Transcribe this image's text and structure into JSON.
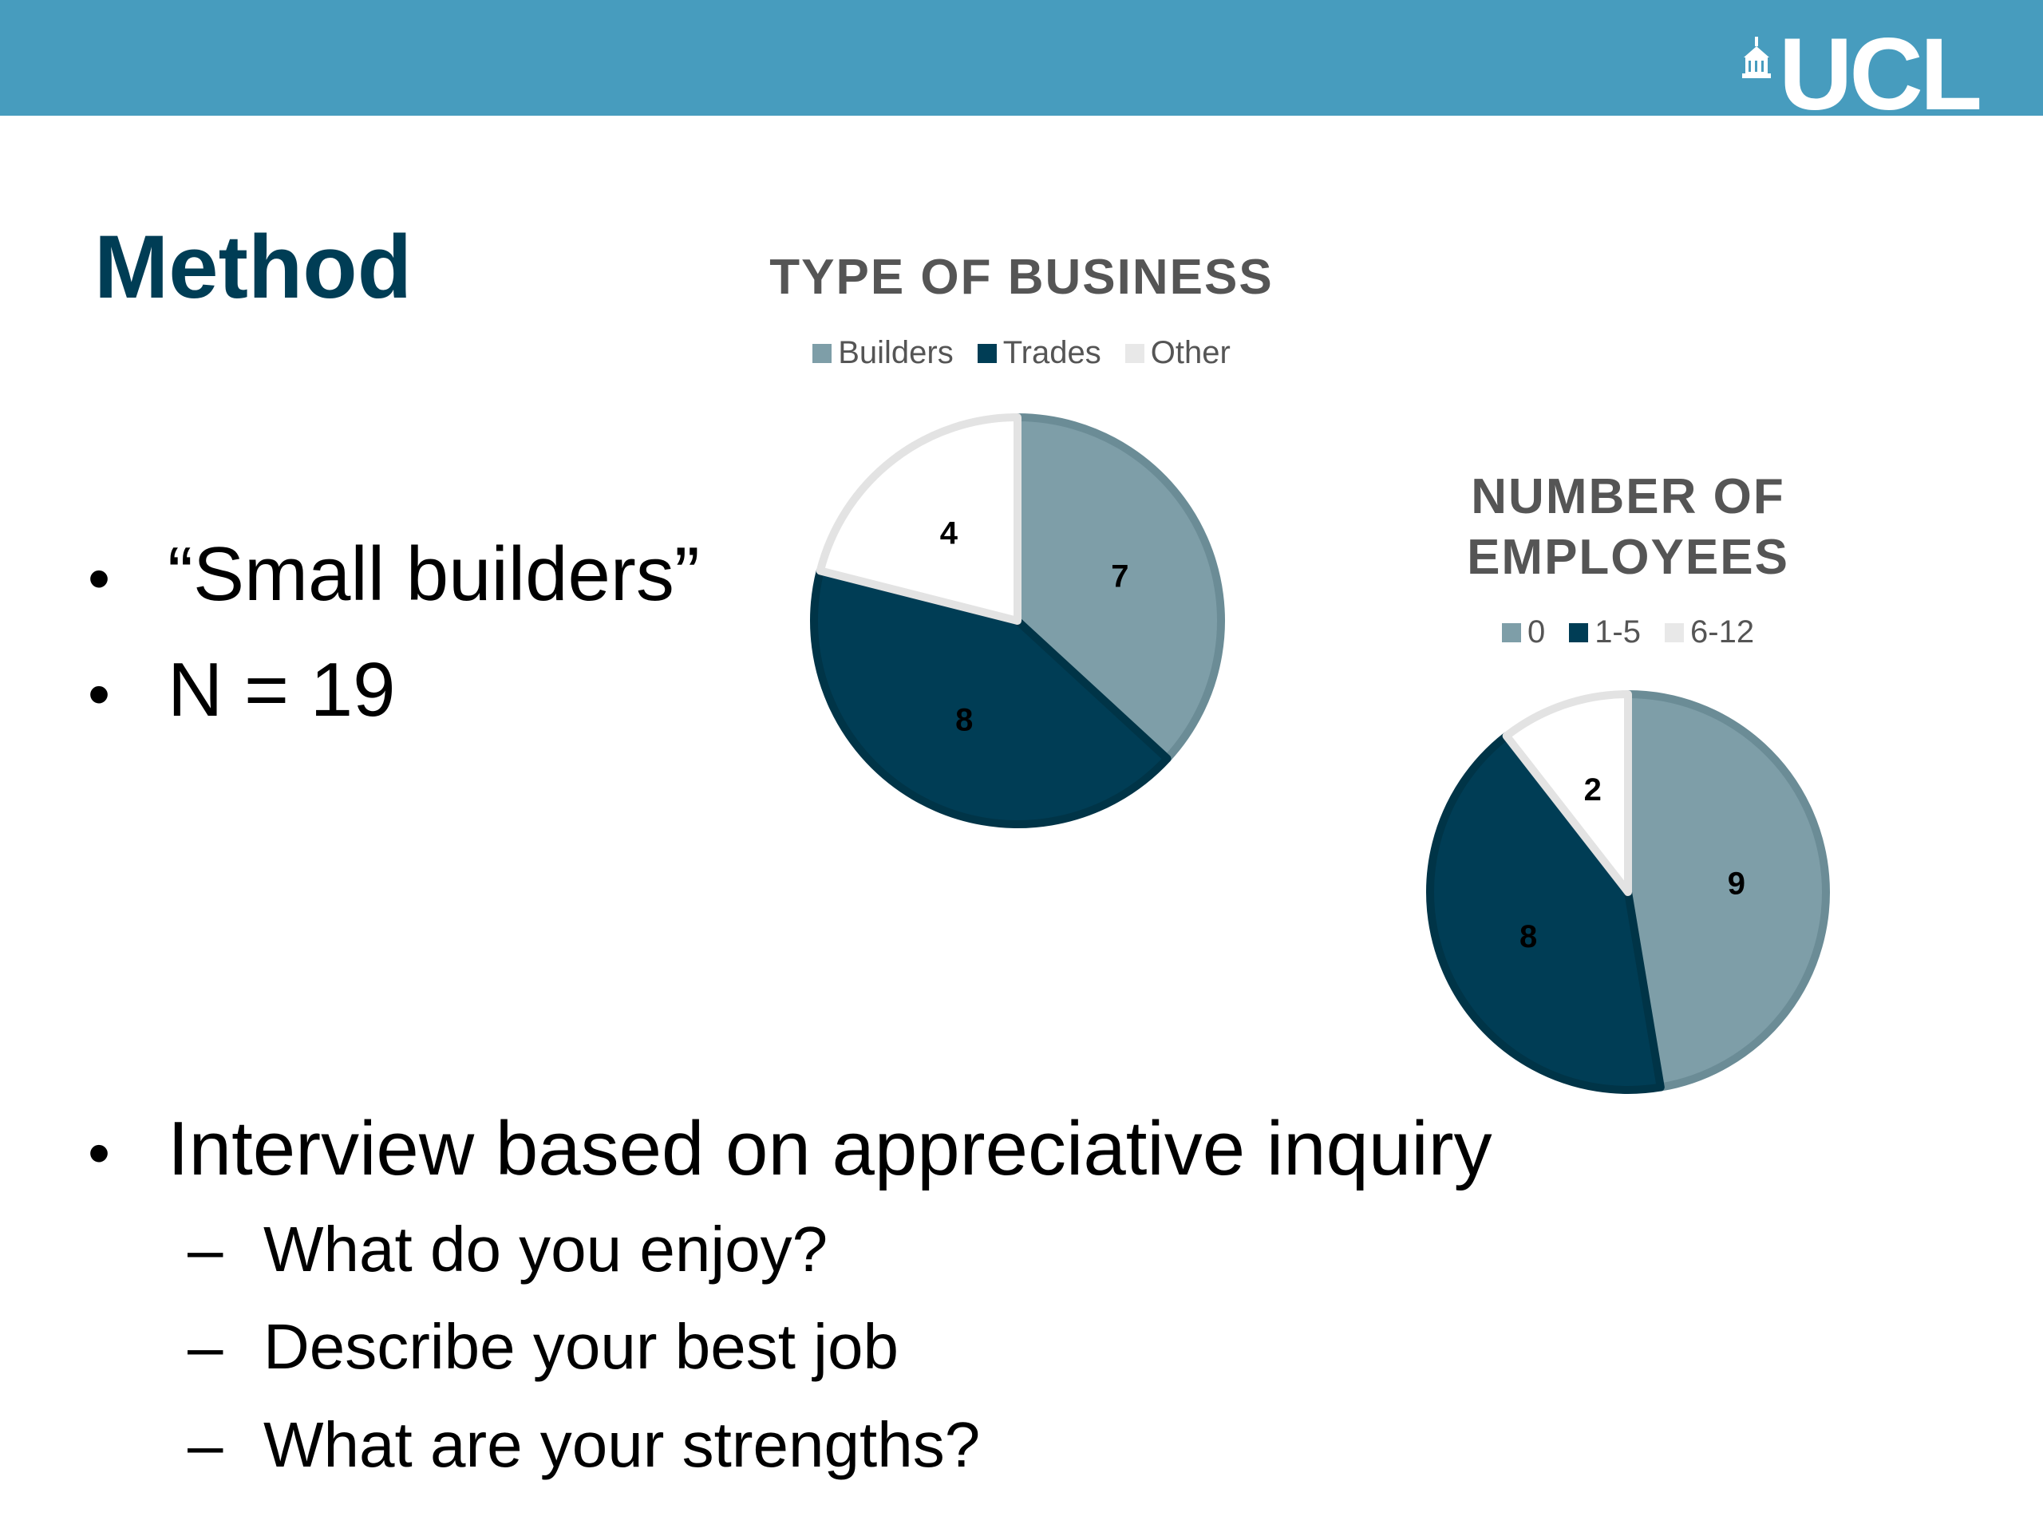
{
  "header": {
    "logo_text": "UCL",
    "bar_color": "#479cbe"
  },
  "slide": {
    "title": "Method",
    "bullets": [
      {
        "mark": "•",
        "text": "“Small builders”"
      },
      {
        "mark": "•",
        "text": "N = 19"
      },
      {
        "mark": "•",
        "text": "Interview based on appreciative inquiry"
      }
    ],
    "sub_bullets": [
      {
        "mark": "–",
        "text": "What do you enjoy?"
      },
      {
        "mark": "–",
        "text": "Describe your best job"
      },
      {
        "mark": "–",
        "text": "What are your strengths?"
      }
    ]
  },
  "chart_data": [
    {
      "type": "pie",
      "title": "TYPE OF BUSINESS",
      "legend_position": "top",
      "categories": [
        "Builders",
        "Trades",
        "Other"
      ],
      "values": [
        7,
        8,
        4
      ],
      "colors": [
        "#7e9ea8",
        "#003d55",
        "#ffffff"
      ]
    },
    {
      "type": "pie",
      "title": "NUMBER OF EMPLOYEES",
      "legend_position": "top",
      "categories": [
        "0",
        "1-5",
        "6-12"
      ],
      "values": [
        9,
        8,
        2
      ],
      "colors": [
        "#7e9ea8",
        "#003d55",
        "#ffffff"
      ]
    }
  ]
}
